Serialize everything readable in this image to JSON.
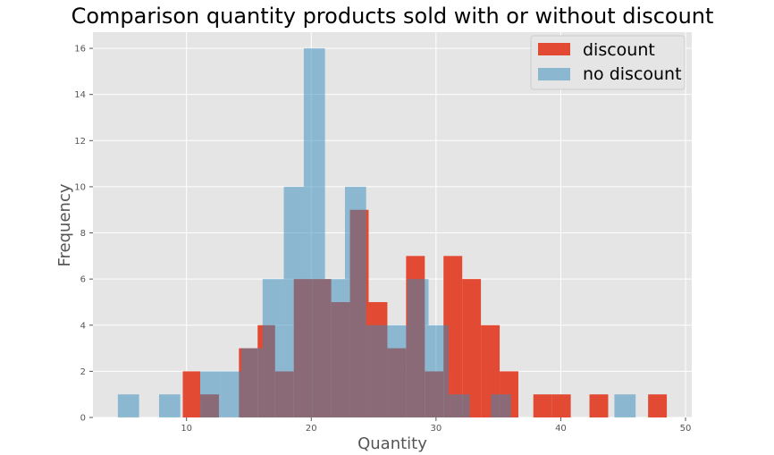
{
  "chart_data": {
    "type": "bar",
    "title": "Comparison quantity products sold with or without discount",
    "xlabel": "Quantity",
    "ylabel": "Frequency",
    "xlim": [
      2.5,
      50.5
    ],
    "ylim": [
      0,
      16.7
    ],
    "xticks": [
      10,
      20,
      30,
      40,
      50
    ],
    "yticks": [
      0,
      2,
      4,
      6,
      8,
      10,
      12,
      14,
      16
    ],
    "grid": true,
    "legend_position": "top-right",
    "series": [
      {
        "name": "discount",
        "color": "#E24A33",
        "opacity": 1.0,
        "bins": [
          {
            "x0": 9.7,
            "x1": 11.1,
            "value": 2
          },
          {
            "x0": 11.1,
            "x1": 12.6,
            "value": 1
          },
          {
            "x0": 14.2,
            "x1": 15.7,
            "value": 3
          },
          {
            "x0": 15.7,
            "x1": 17.1,
            "value": 4
          },
          {
            "x0": 17.1,
            "x1": 18.6,
            "value": 2
          },
          {
            "x0": 18.6,
            "x1": 20.1,
            "value": 6
          },
          {
            "x0": 20.1,
            "x1": 21.6,
            "value": 6
          },
          {
            "x0": 21.6,
            "x1": 23.1,
            "value": 5
          },
          {
            "x0": 23.1,
            "x1": 24.6,
            "value": 9
          },
          {
            "x0": 24.6,
            "x1": 26.1,
            "value": 5
          },
          {
            "x0": 26.1,
            "x1": 27.6,
            "value": 3
          },
          {
            "x0": 27.6,
            "x1": 29.1,
            "value": 7
          },
          {
            "x0": 29.1,
            "x1": 30.6,
            "value": 2
          },
          {
            "x0": 30.6,
            "x1": 32.1,
            "value": 7
          },
          {
            "x0": 32.1,
            "x1": 33.6,
            "value": 6
          },
          {
            "x0": 33.6,
            "x1": 35.1,
            "value": 4
          },
          {
            "x0": 35.1,
            "x1": 36.6,
            "value": 2
          },
          {
            "x0": 37.8,
            "x1": 39.3,
            "value": 1
          },
          {
            "x0": 39.3,
            "x1": 40.8,
            "value": 1
          },
          {
            "x0": 42.3,
            "x1": 43.8,
            "value": 1
          },
          {
            "x0": 47.0,
            "x1": 48.5,
            "value": 1
          }
        ]
      },
      {
        "name": "no discount",
        "color": "#348ABD",
        "opacity": 0.5,
        "bins": [
          {
            "x0": 4.5,
            "x1": 6.2,
            "value": 1
          },
          {
            "x0": 7.8,
            "x1": 9.5,
            "value": 1
          },
          {
            "x0": 11.1,
            "x1": 12.8,
            "value": 2
          },
          {
            "x0": 12.8,
            "x1": 14.4,
            "value": 2
          },
          {
            "x0": 14.4,
            "x1": 16.1,
            "value": 3
          },
          {
            "x0": 16.1,
            "x1": 17.8,
            "value": 6
          },
          {
            "x0": 17.8,
            "x1": 19.4,
            "value": 10
          },
          {
            "x0": 19.4,
            "x1": 21.1,
            "value": 16
          },
          {
            "x0": 21.1,
            "x1": 22.7,
            "value": 6
          },
          {
            "x0": 22.7,
            "x1": 24.4,
            "value": 10
          },
          {
            "x0": 24.4,
            "x1": 26.1,
            "value": 4
          },
          {
            "x0": 26.1,
            "x1": 27.7,
            "value": 4
          },
          {
            "x0": 27.7,
            "x1": 29.4,
            "value": 6
          },
          {
            "x0": 29.4,
            "x1": 31.0,
            "value": 4
          },
          {
            "x0": 31.0,
            "x1": 32.7,
            "value": 1
          },
          {
            "x0": 34.4,
            "x1": 36.0,
            "value": 1
          },
          {
            "x0": 44.3,
            "x1": 46.0,
            "value": 1
          }
        ]
      }
    ]
  }
}
